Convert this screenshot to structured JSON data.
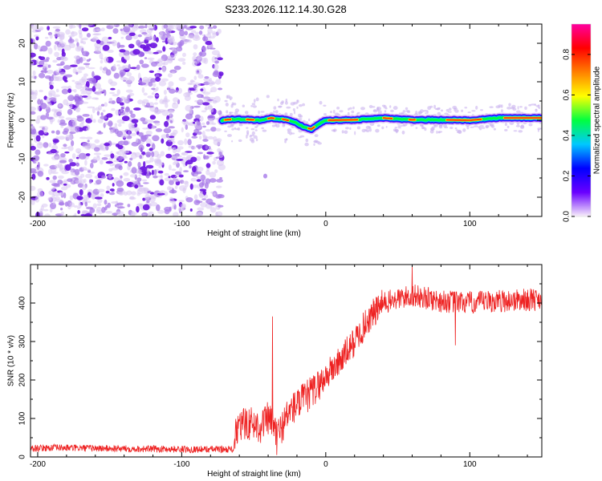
{
  "title": "S233.2026.112.14.30.G28",
  "chart_data": [
    {
      "type": "heatmap",
      "name": "spectrogram",
      "xlabel": "Height of straight line (km)",
      "ylabel": "Frequency (Hz)",
      "xlim": [
        -205,
        150
      ],
      "ylim": [
        -25,
        25
      ],
      "xticks": [
        -200,
        -100,
        0,
        100
      ],
      "yticks": [
        -20,
        -10,
        0,
        10,
        20
      ],
      "noise_region_x": [
        -205,
        -72
      ],
      "signal_track": {
        "x": [
          -72,
          -65,
          -55,
          -45,
          -38,
          -30,
          -22,
          -15,
          -10,
          -5,
          0,
          20,
          40,
          60,
          80,
          100,
          120,
          150
        ],
        "freq": [
          0.0,
          0.3,
          0.2,
          0.0,
          0.6,
          0.3,
          -0.4,
          -1.8,
          -2.3,
          -1.0,
          0.0,
          0.1,
          0.6,
          0.1,
          0.1,
          0.0,
          0.6,
          0.6
        ]
      },
      "colorbar": {
        "label": "Normalized spectral amplitude",
        "range": [
          0,
          0.95
        ],
        "ticks": [
          0.0,
          0.2,
          0.4,
          0.6,
          0.8
        ],
        "tick_labels": [
          "0.0",
          "0.2",
          "0.4",
          "0.6",
          "0.8"
        ],
        "colormap": [
          "#f8f0fa",
          "#6a00ff",
          "#0000ff",
          "#00c8ff",
          "#00ff40",
          "#ffff00",
          "#ff7f00",
          "#ff0000",
          "#ff00a0"
        ]
      }
    },
    {
      "type": "line",
      "name": "snr",
      "xlabel": "Height of straight line (km)",
      "ylabel": "SNR (10 * v/v)",
      "xlim": [
        -205,
        150
      ],
      "ylim": [
        0,
        500
      ],
      "xticks": [
        -200,
        -100,
        0,
        100
      ],
      "yticks": [
        0,
        100,
        200,
        300,
        400
      ],
      "color": "#ee2222",
      "trend": {
        "x": [
          -205,
          -190,
          -150,
          -100,
          -75,
          -64,
          -62,
          -55,
          -45,
          -40,
          -33,
          -25,
          -15,
          -5,
          0,
          10,
          20,
          30,
          40,
          60,
          80,
          100,
          120,
          150
        ],
        "y": [
          22,
          24,
          22,
          20,
          20,
          20,
          70,
          90,
          80,
          100,
          60,
          120,
          150,
          185,
          210,
          250,
          300,
          360,
          400,
          420,
          405,
          400,
          405,
          410
        ]
      },
      "spikes": [
        {
          "x": -37,
          "y": 365
        },
        {
          "x": -34,
          "y": 5
        },
        {
          "x": 60,
          "y": 495
        },
        {
          "x": 90,
          "y": 290
        }
      ]
    }
  ]
}
